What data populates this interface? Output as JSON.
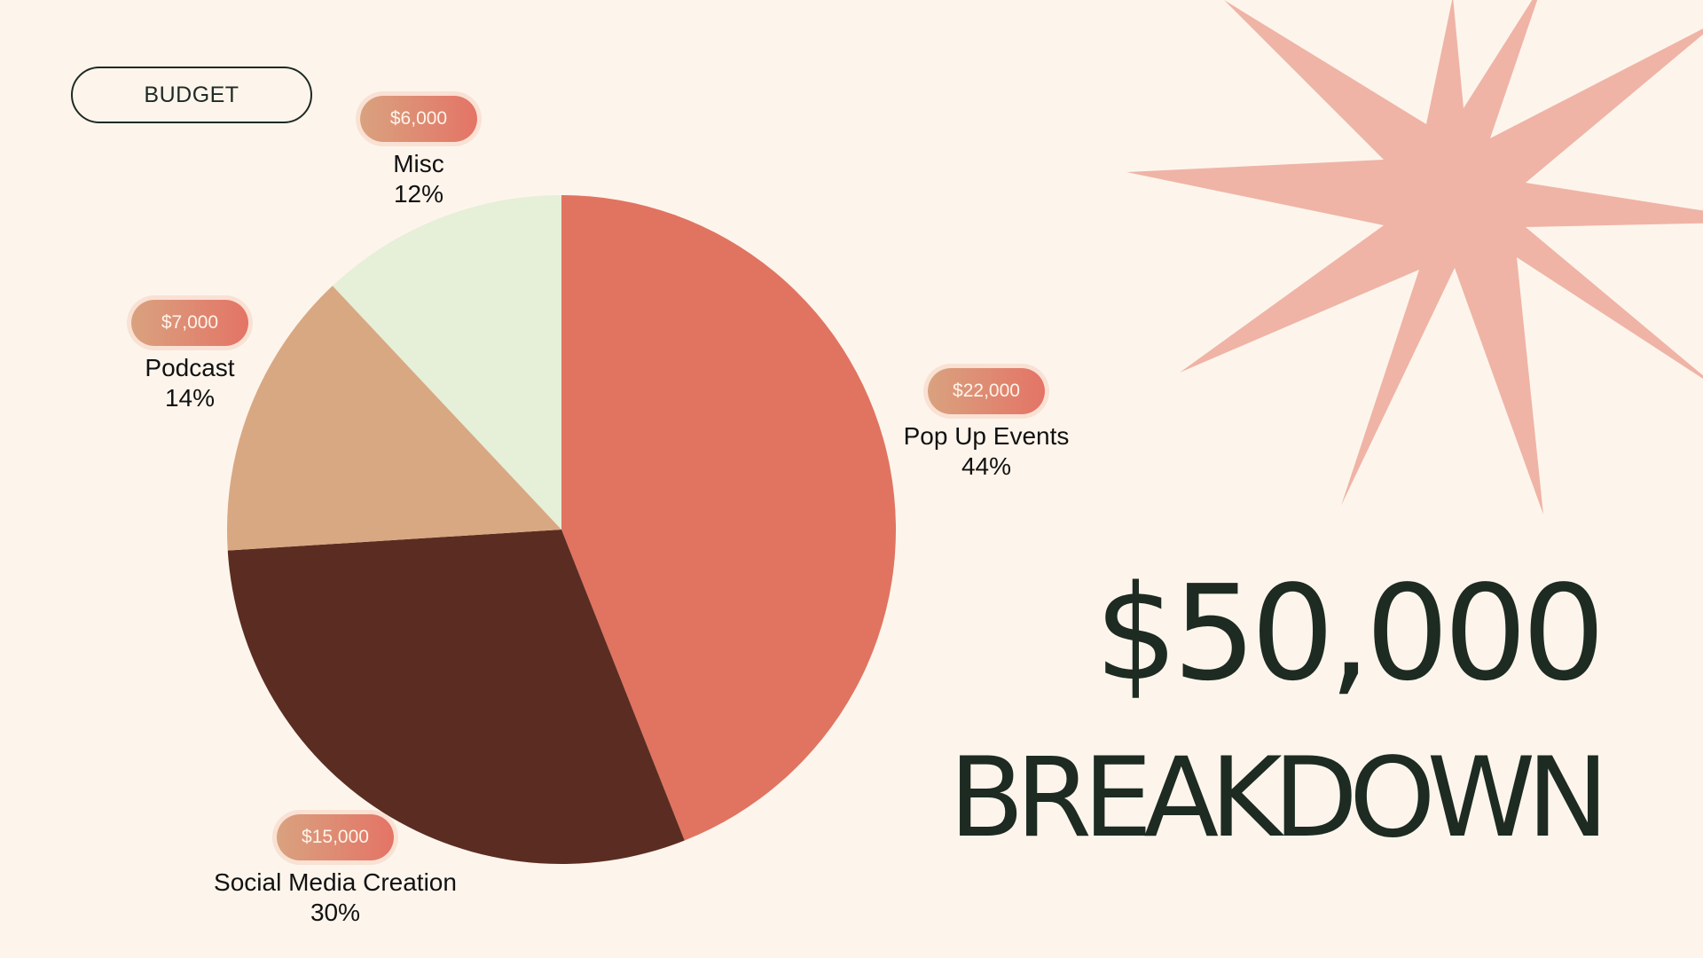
{
  "badge": {
    "label": "BUDGET"
  },
  "headline": {
    "amount": "$50,000",
    "word": "BREAKDOWN"
  },
  "colors": {
    "background": "#fdf5ec",
    "starburst": "#efb4a6",
    "text": "#1d2b22"
  },
  "chart_data": {
    "type": "pie",
    "categories": [
      "Pop Up Events",
      "Social Media Creation",
      "Podcast",
      "Misc"
    ],
    "values": [
      22000,
      15000,
      7000,
      6000
    ],
    "amount_labels": [
      "$22,000",
      "$15,000",
      "$7,000",
      "$6,000"
    ],
    "percent_labels": [
      "44%",
      "30%",
      "14%",
      "12%"
    ],
    "colors": [
      "#e07461",
      "#5b2d22",
      "#d8a883",
      "#e6efd8"
    ],
    "start_angle": "12 o'clock",
    "direction": "clockwise"
  }
}
